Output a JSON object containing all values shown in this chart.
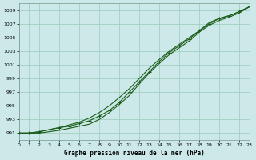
{
  "background_color": "#cce8e8",
  "grid_color": "#99ccbb",
  "line_color": "#1a5c1a",
  "xlabel": "Graphe pression niveau de la mer (hPa)",
  "xlim": [
    0,
    23
  ],
  "ylim": [
    990.0,
    1010.0
  ],
  "yticks": [
    991,
    993,
    995,
    997,
    999,
    1001,
    1003,
    1005,
    1007,
    1009
  ],
  "xticks": [
    0,
    1,
    2,
    3,
    4,
    5,
    6,
    7,
    8,
    9,
    10,
    11,
    12,
    13,
    14,
    15,
    16,
    17,
    18,
    19,
    20,
    21,
    22,
    23
  ],
  "line_top": [
    991.0,
    991.0,
    991.2,
    991.5,
    991.8,
    992.2,
    992.6,
    993.2,
    994.0,
    995.0,
    996.2,
    997.5,
    999.0,
    1000.5,
    1001.8,
    1003.0,
    1004.0,
    1005.0,
    1006.0,
    1007.2,
    1007.8,
    1008.2,
    1008.8,
    1009.5
  ],
  "line_mid": [
    991.0,
    991.0,
    991.2,
    991.5,
    991.8,
    992.0,
    992.4,
    992.8,
    993.5,
    994.3,
    995.5,
    997.0,
    998.5,
    1000.0,
    1001.5,
    1002.8,
    1003.8,
    1004.8,
    1006.0,
    1007.0,
    1007.8,
    1008.2,
    1008.8,
    1009.5
  ],
  "line_bot": [
    991.0,
    991.0,
    991.0,
    991.2,
    991.4,
    991.7,
    992.0,
    992.3,
    993.0,
    994.0,
    995.2,
    996.5,
    998.2,
    999.8,
    1001.2,
    1002.5,
    1003.5,
    1004.5,
    1005.8,
    1006.8,
    1007.5,
    1008.0,
    1008.6,
    1009.5
  ]
}
